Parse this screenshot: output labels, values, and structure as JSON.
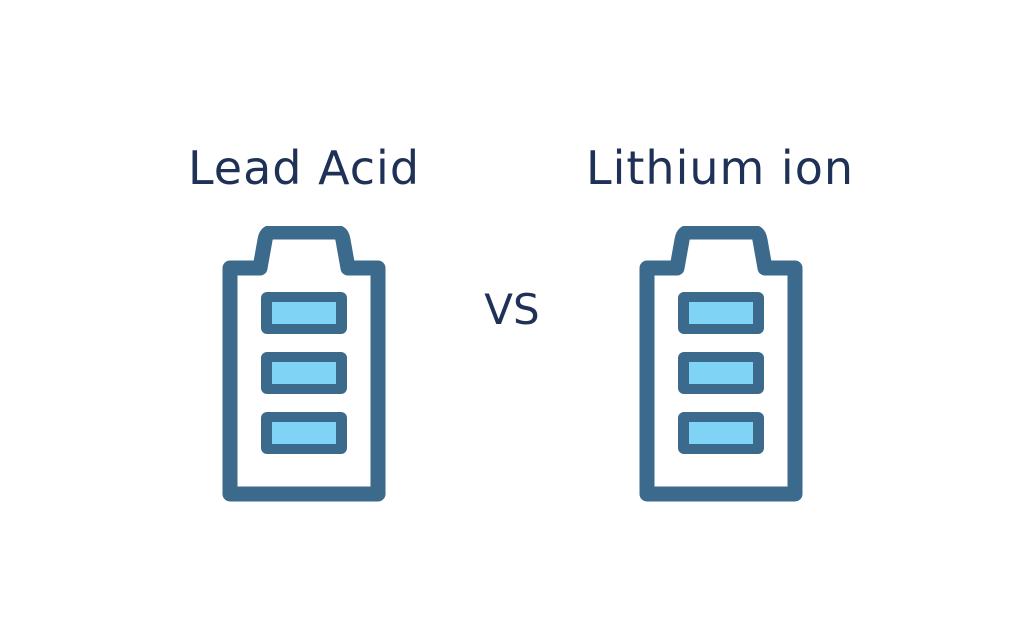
{
  "comparison": {
    "left": {
      "label": "Lead Acid",
      "icon": "battery-full-icon",
      "charge_bars": 3
    },
    "separator": "VS",
    "right": {
      "label": "Lithium ion",
      "icon": "battery-full-icon",
      "charge_bars": 3
    }
  },
  "colors": {
    "text": "#1f3156",
    "battery_outline": "#3b6a8d",
    "charge_fill": "#7fd4f6"
  }
}
